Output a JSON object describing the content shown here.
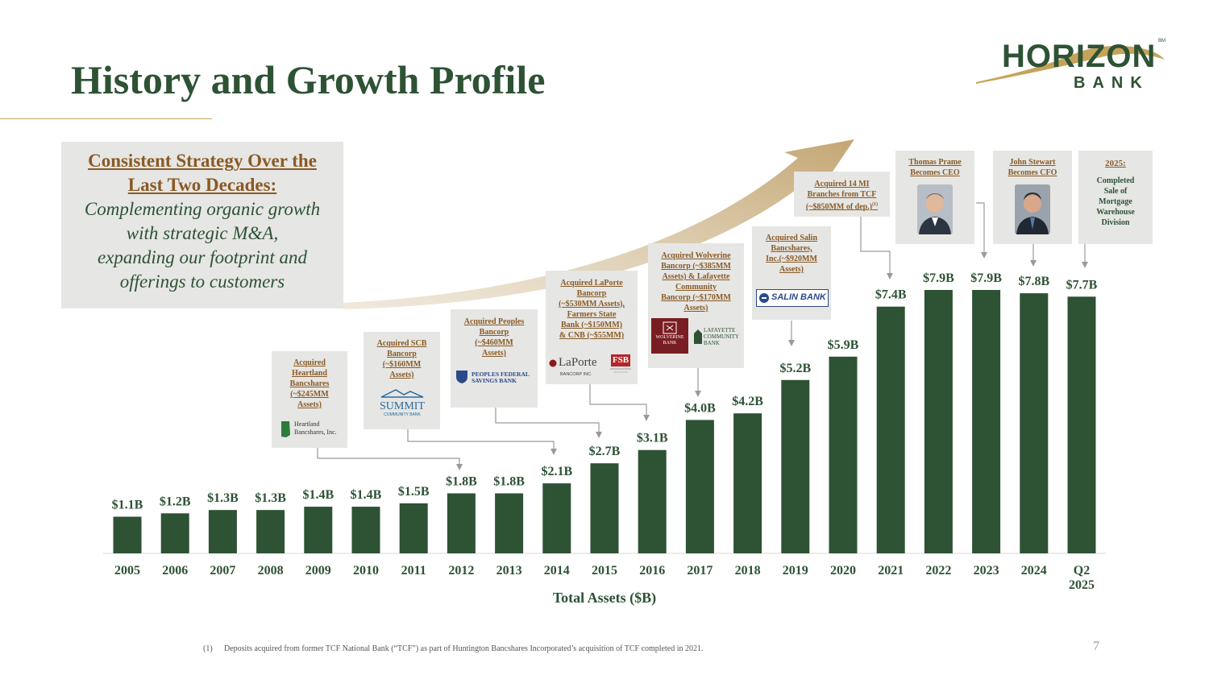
{
  "header": {
    "title": "History and Growth Profile"
  },
  "logo": {
    "name": "HORIZON",
    "sub": "BANK",
    "tm": "BM"
  },
  "strategy": {
    "heading_1": "Consistent Strategy Over the",
    "heading_2": "Last Two Decades:",
    "body_1": "Complementing organic growth",
    "body_2": "with strategic M&A,",
    "body_3": "expanding our footprint and",
    "body_4": "offerings to customers"
  },
  "callouts": [
    {
      "id": "heartland",
      "lines": [
        "Acquired",
        "Heartland",
        "Bancshares",
        "(~$245MM",
        "Assets)"
      ],
      "logo_text": [
        "Heartland",
        "Bancshares, Inc."
      ]
    },
    {
      "id": "scb",
      "lines": [
        "Acquired SCB",
        "Bancorp",
        "(~$160MM",
        "Assets)"
      ],
      "logo_text": [
        "SUMMIT",
        "COMMUNITY BANK"
      ]
    },
    {
      "id": "peoples",
      "lines": [
        "Acquired Peoples",
        "Bancorp",
        "(~$460MM",
        "Assets)"
      ],
      "logo_text": [
        "PEOPLES FEDERAL",
        "SAVINGS BANK"
      ]
    },
    {
      "id": "laporte",
      "lines": [
        "Acquired LaPorte",
        "Bancorp",
        "(~$530MM Assets),",
        "Farmers State",
        "Bank (~$150MM)",
        "& CNB (~$55MM)"
      ],
      "logo_text": [
        "LaPorte",
        "BANCORP INC.",
        "FSB"
      ]
    },
    {
      "id": "wolverine",
      "lines": [
        "Acquired Wolverine",
        "Bancorp (~$385MM",
        "Assets) & Lafayette",
        "Community",
        "Bancorp (~$170MM",
        "Assets)"
      ],
      "logo_text": [
        "WOLVERINE",
        "BANK",
        "LAFAYETTE",
        "COMMUNITY",
        "BANK"
      ]
    },
    {
      "id": "salin",
      "lines": [
        "Acquired Salin",
        "Bancshares,",
        "Inc.(~$920MM",
        "Assets)"
      ],
      "logo_text": [
        "SALIN BANK"
      ]
    },
    {
      "id": "tcf",
      "lines": [
        "Acquired 14 MI",
        "Branches from TCF",
        "(~$850MM of dep.)"
      ],
      "sup": "(1)"
    },
    {
      "id": "prame",
      "lines": [
        "Thomas Prame",
        "Becomes CEO"
      ]
    },
    {
      "id": "stewart",
      "lines": [
        "John Stewart",
        "Becomes CFO"
      ]
    },
    {
      "id": "warehouse",
      "heading": "2025:",
      "lines": [
        "Completed",
        "Sale of",
        "Mortgage",
        "Warehouse",
        "Division"
      ]
    }
  ],
  "chart_data": {
    "type": "bar",
    "categories": [
      "2005",
      "2006",
      "2007",
      "2008",
      "2009",
      "2010",
      "2011",
      "2012",
      "2013",
      "2014",
      "2015",
      "2016",
      "2017",
      "2018",
      "2019",
      "2020",
      "2021",
      "2022",
      "2023",
      "2024",
      "Q2 2025"
    ],
    "values": [
      1.1,
      1.2,
      1.3,
      1.3,
      1.4,
      1.4,
      1.5,
      1.8,
      1.8,
      2.1,
      2.7,
      3.1,
      4.0,
      4.2,
      5.2,
      5.9,
      7.4,
      7.9,
      7.9,
      7.8,
      7.7
    ],
    "value_labels": [
      "$1.1B",
      "$1.2B",
      "$1.3B",
      "$1.3B",
      "$1.4B",
      "$1.4B",
      "$1.5B",
      "$1.8B",
      "$1.8B",
      "$2.1B",
      "$2.7B",
      "$3.1B",
      "$4.0B",
      "$4.2B",
      "$5.2B",
      "$5.9B",
      "$7.4B",
      "$7.9B",
      "$7.9B",
      "$7.8B",
      "$7.7B"
    ],
    "xlabel": "Total Assets ($B)",
    "ylabel": "",
    "ylim": [
      0,
      7.9
    ],
    "grid": false,
    "bar_color": "#2d5234"
  },
  "footnote": {
    "mark": "(1)",
    "text": "Deposits acquired from former TCF National Bank (“TCF”) as part of Huntington Bancshares Incorporated’s acquisition of TCF completed in 2021."
  },
  "page_number": "7"
}
